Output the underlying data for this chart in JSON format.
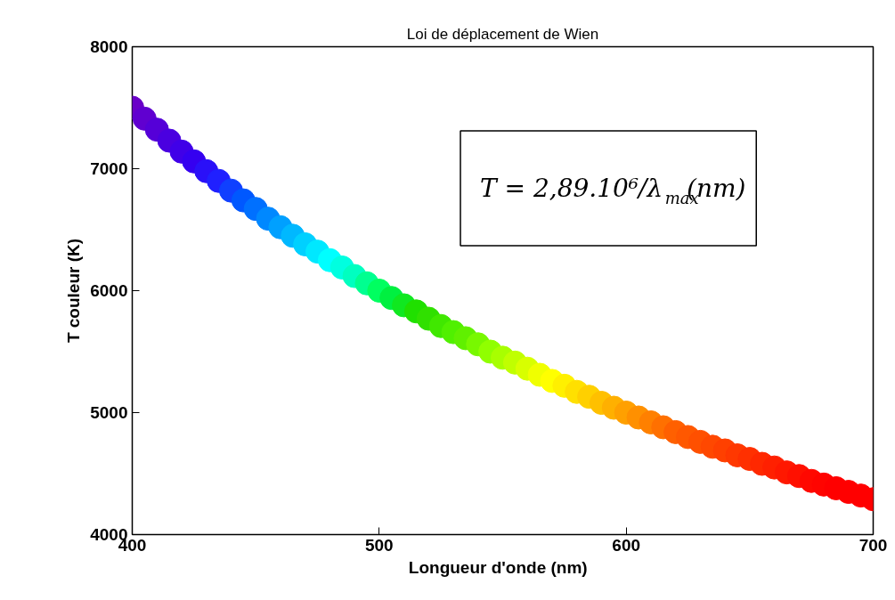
{
  "chart_data": {
    "type": "scatter",
    "title": "Loi de déplacement de Wien",
    "xlabel": "Longueur d'onde   (nm)",
    "ylabel": "T couleur (K)",
    "x": [
      400,
      405,
      410,
      415,
      420,
      425,
      430,
      435,
      440,
      445,
      450,
      455,
      460,
      465,
      470,
      475,
      480,
      485,
      490,
      495,
      500,
      505,
      510,
      515,
      520,
      525,
      530,
      535,
      540,
      545,
      550,
      555,
      560,
      565,
      570,
      575,
      580,
      585,
      590,
      595,
      600,
      605,
      610,
      615,
      620,
      625,
      630,
      635,
      640,
      645,
      650,
      655,
      660,
      665,
      670,
      675,
      680,
      685,
      690,
      695,
      700
    ],
    "values": [
      7500,
      7410,
      7320,
      7230,
      7140,
      7060,
      6980,
      6900,
      6820,
      6740,
      6670,
      6590,
      6520,
      6450,
      6380,
      6320,
      6250,
      6190,
      6120,
      6060,
      6000,
      5940,
      5880,
      5830,
      5770,
      5710,
      5660,
      5610,
      5560,
      5500,
      5450,
      5410,
      5360,
      5310,
      5260,
      5220,
      5170,
      5130,
      5080,
      5040,
      5000,
      4960,
      4920,
      4880,
      4840,
      4800,
      4760,
      4720,
      4690,
      4650,
      4620,
      4580,
      4550,
      4510,
      4480,
      4440,
      4410,
      4380,
      4350,
      4320,
      4290
    ],
    "colors": [
      "#6a00c8",
      "#6000d0",
      "#5500d8",
      "#4a00e0",
      "#4000e8",
      "#3500f0",
      "#2a10f8",
      "#2020ff",
      "#1040ff",
      "#0058ff",
      "#0070ff",
      "#0088ff",
      "#00a0ff",
      "#00b8ff",
      "#00d0ff",
      "#00e8ff",
      "#00ffff",
      "#00ffe0",
      "#00ffc0",
      "#00ff90",
      "#00ff60",
      "#00f040",
      "#10e820",
      "#20e000",
      "#30e000",
      "#40e800",
      "#50f000",
      "#60f000",
      "#78f800",
      "#90ff00",
      "#a8ff00",
      "#c0ff00",
      "#d8ff00",
      "#f0ff00",
      "#ffff00",
      "#fff000",
      "#ffe000",
      "#ffd000",
      "#ffc000",
      "#ffb000",
      "#ffa000",
      "#ff9000",
      "#ff8000",
      "#ff7000",
      "#ff6000",
      "#ff5800",
      "#ff5000",
      "#ff4800",
      "#ff4000",
      "#ff3800",
      "#ff3000",
      "#ff2800",
      "#ff2000",
      "#ff1800",
      "#ff1000",
      "#ff0800",
      "#ff0400",
      "#ff0000",
      "#ff0000",
      "#ff0000",
      "#ff0000"
    ],
    "xlim": [
      400,
      700
    ],
    "ylim": [
      4000,
      8000
    ],
    "xticks": [
      400,
      500,
      600,
      700
    ],
    "yticks": [
      4000,
      5000,
      6000,
      7000,
      8000
    ],
    "marker": "circle",
    "grid": false,
    "annotations": [
      "T = 2,89.10⁶/λ$_{max}$(nm)"
    ]
  }
}
